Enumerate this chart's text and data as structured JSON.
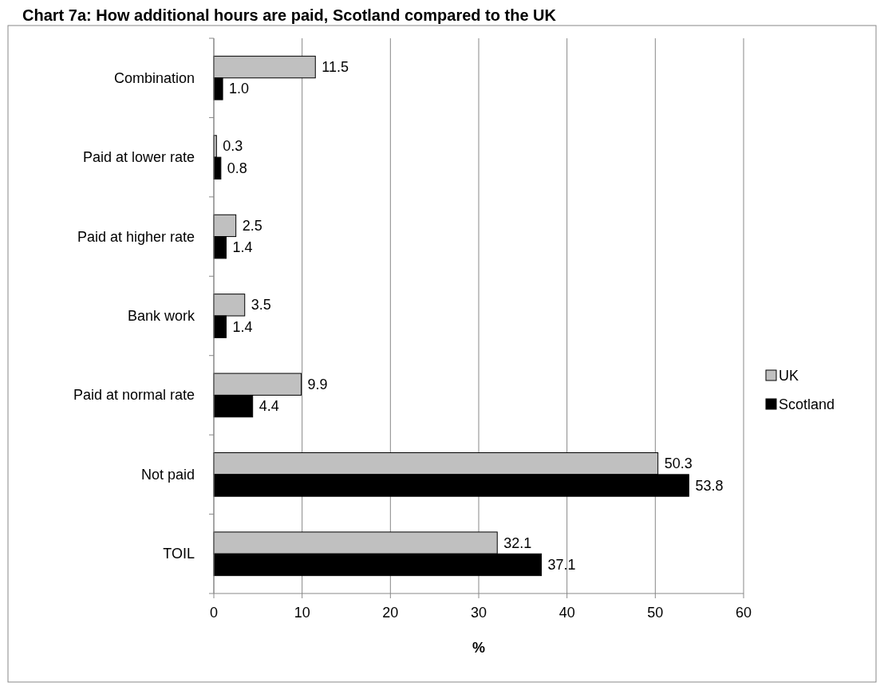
{
  "chart_data": {
    "type": "bar",
    "orientation": "horizontal",
    "title": "Chart 7a: How additional hours are paid, Scotland compared to the UK",
    "xlabel": "%",
    "categories": [
      "Combination",
      "Paid at lower rate",
      "Paid at higher rate",
      "Bank work",
      "Paid at normal rate",
      "Not paid",
      "TOIL"
    ],
    "series": [
      {
        "name": "UK",
        "color": "#c0c0c0",
        "values": [
          11.5,
          0.3,
          2.5,
          3.5,
          9.9,
          50.3,
          32.1
        ],
        "value_labels": [
          "11.5",
          "0.3",
          "2.5",
          "3.5",
          "9.9",
          "50.3",
          "32.1"
        ]
      },
      {
        "name": "Scotland",
        "color": "#000000",
        "values": [
          1.0,
          0.8,
          1.4,
          1.4,
          4.4,
          53.8,
          37.1
        ],
        "value_labels": [
          "1.0",
          "0.8",
          "1.4",
          "1.4",
          "4.4",
          "53.8",
          "37.1"
        ]
      }
    ],
    "xlim": [
      0,
      60
    ],
    "xticks": [
      0,
      10,
      20,
      30,
      40,
      50,
      60
    ],
    "grid": "x",
    "legend": "right"
  }
}
